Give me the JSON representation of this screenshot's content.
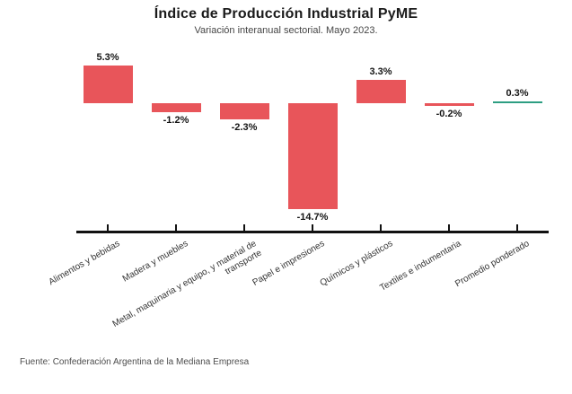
{
  "header": {
    "title": "Índice de Producción Industrial PyME",
    "subtitle": "Variación interanual sectorial. Mayo 2023."
  },
  "footer": {
    "source": "Fuente: Confederación Argentina de la Mediana Empresa"
  },
  "chart_data": {
    "type": "bar",
    "title": "Índice de Producción Industrial PyME",
    "subtitle": "Variación interanual sectorial. Mayo 2023.",
    "categories": [
      "Alimentos y bebidas",
      "Madera y muebles",
      "Metal, maquinaria y equipo, y material de\ntransporte",
      "Papel e impresiones",
      "Químicos y plásticos",
      "Textiles e indumentaria",
      "Promedio ponderado"
    ],
    "values": [
      5.3,
      -1.2,
      -2.3,
      -14.7,
      3.3,
      -0.2,
      0.3
    ],
    "value_labels": [
      "5.3%",
      "-1.2%",
      "-2.3%",
      "-14.7%",
      "3.3%",
      "-0.2%",
      "0.3%"
    ],
    "bar_colors": [
      "#E8555A",
      "#E8555A",
      "#E8555A",
      "#E8555A",
      "#E8555A",
      "#E8555A",
      "#2D9E82"
    ],
    "base_color": "#E8555A",
    "highlight_color": "#2D9E82",
    "axis_color": "#111111",
    "xlabel": "",
    "ylabel": "",
    "ylim": [
      -16,
      7
    ],
    "baseline": 0,
    "grid": false,
    "legend": false,
    "source": "Fuente: Confederación Argentina de la Mediana Empresa"
  }
}
